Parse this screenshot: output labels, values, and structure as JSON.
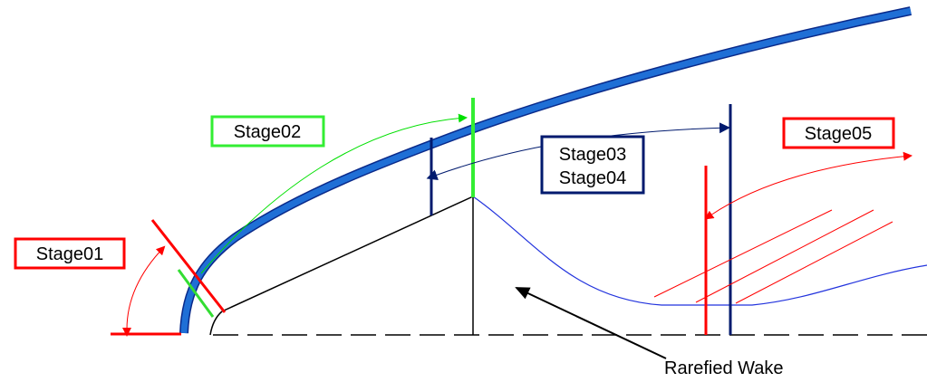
{
  "labels": {
    "stage01": "Stage01",
    "stage02": "Stage02",
    "stage03": "Stage03",
    "stage04": "Stage04",
    "stage05": "Stage05",
    "wake": "Rarefied Wake"
  },
  "colors": {
    "stage01": "#ff0000",
    "stage02": "#00e000",
    "stage03_04": "#001a6e",
    "stage05": "#ff0000",
    "shock": "#1f6fd6",
    "shock_outline": "#0a2a8a",
    "wake_line": "#2233dd",
    "body": "#000000"
  }
}
